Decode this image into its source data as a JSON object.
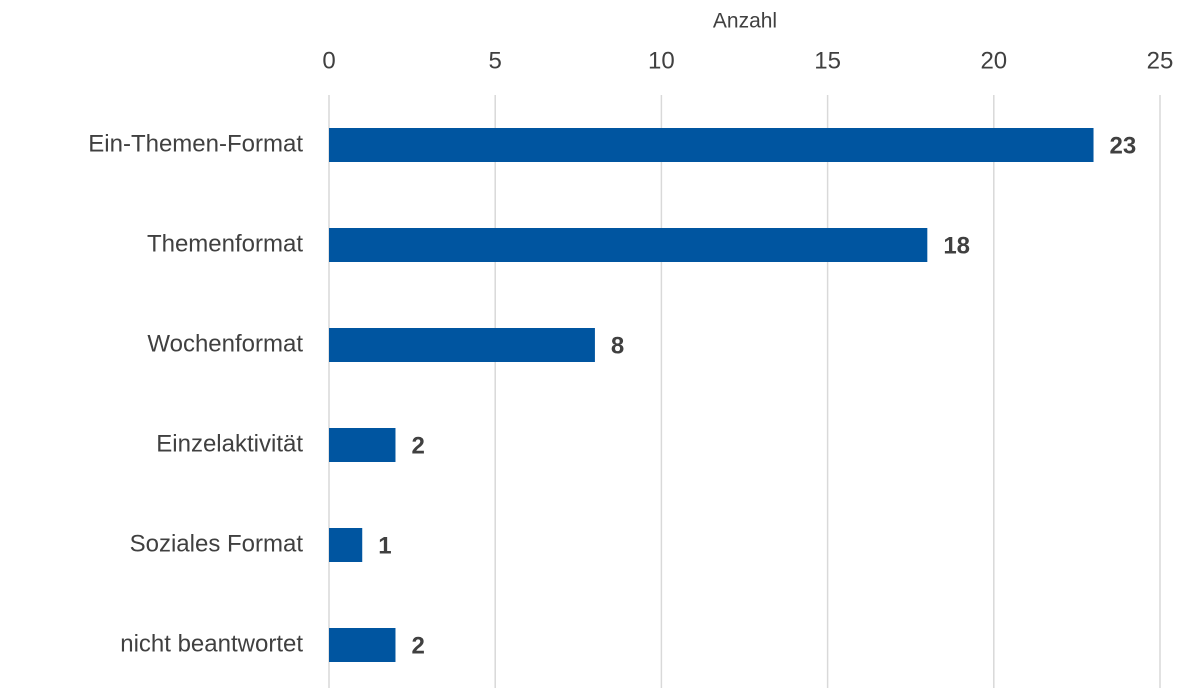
{
  "chart_data": {
    "type": "bar",
    "orientation": "horizontal",
    "x_label": "Anzahl",
    "categories": [
      "Ein-Themen-Format",
      "Themenformat",
      "Wochenformat",
      "Einzelaktivität",
      "Soziales Format",
      "nicht beantwortet"
    ],
    "values": [
      23,
      18,
      8,
      2,
      1,
      2
    ],
    "color": "#0055a0",
    "xlim": [
      0,
      25
    ],
    "xticks": [
      0,
      5,
      10,
      15,
      20,
      25
    ],
    "grid": true,
    "axis_position": "top"
  }
}
